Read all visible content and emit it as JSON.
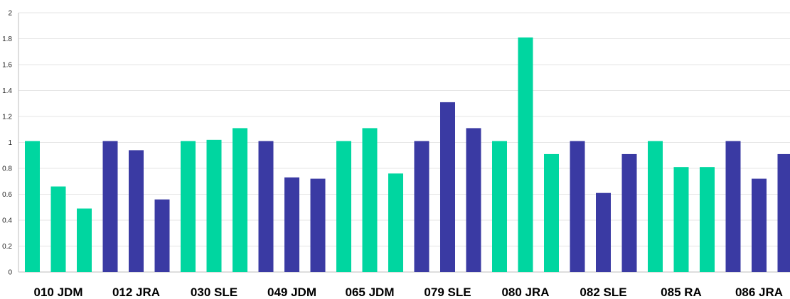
{
  "chart_data": {
    "type": "bar",
    "title": "",
    "xlabel": "",
    "ylabel": "",
    "ylim": [
      0,
      2
    ],
    "yticks": [
      "0",
      "0.2",
      "0.4",
      "0.6",
      "0.8",
      "1",
      "1.2",
      "1.4",
      "1.6",
      "1.8",
      "2"
    ],
    "grid": true,
    "legend": "none",
    "bar_colors": [
      "#00d6a0",
      "#3a3aa3"
    ],
    "groups": [
      {
        "label": "010 JDM",
        "color": "#00d6a0",
        "values": [
          1.01,
          0.66,
          0.49
        ]
      },
      {
        "label": "012 JRA",
        "color": "#3a3aa3",
        "values": [
          1.01,
          0.94,
          0.56
        ]
      },
      {
        "label": "030 SLE",
        "color": "#00d6a0",
        "values": [
          1.01,
          1.02,
          1.11
        ]
      },
      {
        "label": "049 JDM",
        "color": "#3a3aa3",
        "values": [
          1.01,
          0.73,
          0.72
        ]
      },
      {
        "label": "065 JDM",
        "color": "#00d6a0",
        "values": [
          1.01,
          1.11,
          0.76
        ]
      },
      {
        "label": "079 SLE",
        "color": "#3a3aa3",
        "values": [
          1.01,
          1.31,
          1.11
        ]
      },
      {
        "label": "080 JRA",
        "color": "#00d6a0",
        "values": [
          1.01,
          1.81,
          0.91
        ]
      },
      {
        "label": "082 SLE",
        "color": "#3a3aa3",
        "values": [
          1.01,
          0.61,
          0.91
        ]
      },
      {
        "label": "085 RA",
        "color": "#00d6a0",
        "values": [
          1.01,
          0.81,
          0.81
        ]
      },
      {
        "label": "086 JRA",
        "color": "#3a3aa3",
        "values": [
          1.01,
          0.72,
          0.91
        ]
      }
    ]
  }
}
